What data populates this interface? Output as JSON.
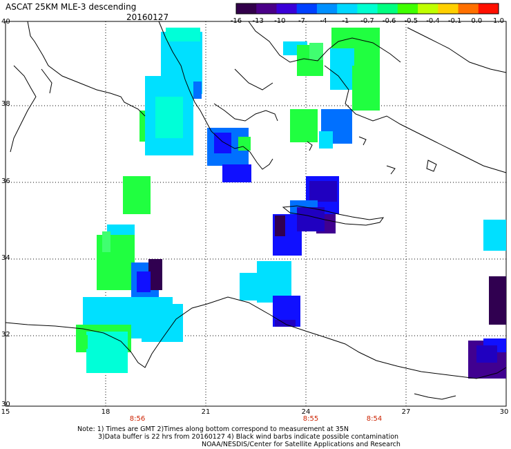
{
  "header": {
    "title": "ASCAT 25KM MLE-3 descending",
    "date": "20160127"
  },
  "colorbar": {
    "labels": [
      "-16",
      "-13",
      "-10",
      "-7",
      "-4",
      "-1",
      "-0.7",
      "-0.6",
      "-0.5",
      "-0.4",
      "-0.1",
      "0.0",
      "1.0"
    ],
    "colors": [
      "#32004a",
      "#4a0088",
      "#3a00d8",
      "#0040ff",
      "#0090ff",
      "#00d8ff",
      "#00ffd0",
      "#00ff80",
      "#40ff00",
      "#c0ff00",
      "#ffd000",
      "#ff7000",
      "#ff1000"
    ]
  },
  "axes": {
    "lat_labels": [
      "40",
      "38",
      "36",
      "34",
      "32",
      "30"
    ],
    "lon_labels": [
      "15",
      "18",
      "21",
      "24",
      "27",
      "30"
    ]
  },
  "times": [
    "8:56",
    "8:55",
    "8:54"
  ],
  "notes": {
    "line1": "Note: 1) Times are GMT 2)Times along bottom correspond to measurement at 35N",
    "line2": "3)Data buffer is 22 hrs from 20160127 4) Black wind barbs indicate possible contamination",
    "line3": "NOAA/NESDIS/Center for Satellite Applications and Research"
  },
  "palette": {
    "cyan": "#00e0ff",
    "aqua": "#00ffd8",
    "green": "#20ff40",
    "lightgreen": "#40ff70",
    "blue": "#0070ff",
    "darkblue": "#1010ff",
    "navy": "#2000c0",
    "purple": "#400090",
    "darkpurple": "#300050"
  }
}
